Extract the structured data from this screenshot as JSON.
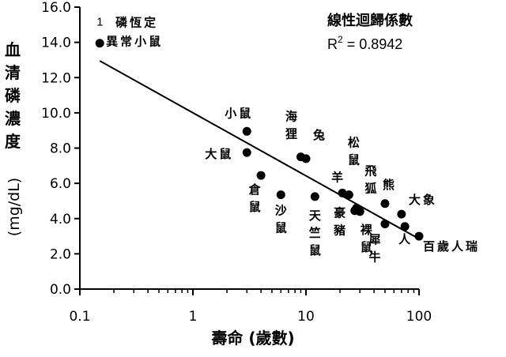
{
  "chart_data": {
    "type": "scatter",
    "xscale": "log",
    "xlim": [
      0.1,
      100
    ],
    "ylim": [
      0,
      16
    ],
    "x_ticks": [
      "0.1",
      "1",
      "10",
      "100"
    ],
    "y_ticks": [
      "0.0",
      "2.0",
      "4.0",
      "6.0",
      "8.0",
      "10.0",
      "12.0",
      "14.0",
      "16.0"
    ],
    "xlabel": "壽命 (歲數)",
    "ylabel_cjk": "血清磷濃度",
    "ylabel_unit": "(mg/dL)",
    "regression_title": "線性迴歸係數",
    "r2_text": "R",
    "r2_sup": "2",
    "r2_value": " = 0.8942",
    "regression_line": {
      "x": [
        0.15,
        100
      ],
      "y": [
        12.95,
        2.85
      ]
    },
    "points": [
      {
        "x": 0.15,
        "y": 13.95,
        "label": "磷恆定\n異常小鼠",
        "marker": "1"
      },
      {
        "x": 3.0,
        "y": 8.95,
        "label": "小鼠"
      },
      {
        "x": 3.0,
        "y": 7.75,
        "label": "大鼠"
      },
      {
        "x": 4.0,
        "y": 6.45,
        "label": "倉鼠"
      },
      {
        "x": 6.0,
        "y": 5.35,
        "label": "沙鼠"
      },
      {
        "x": 9.0,
        "y": 7.5,
        "label": "海狸"
      },
      {
        "x": 10.0,
        "y": 7.4,
        "label": "兔"
      },
      {
        "x": 12.0,
        "y": 5.25,
        "label": "天竺鼠"
      },
      {
        "x": 21.0,
        "y": 5.45,
        "label": "羊"
      },
      {
        "x": 24.0,
        "y": 5.35,
        "label": "松鼠"
      },
      {
        "x": 27.0,
        "y": 4.45,
        "label": "豪豬"
      },
      {
        "x": 30.0,
        "y": 4.4,
        "label": "裸鼠"
      },
      {
        "x": 28.0,
        "y": 4.6,
        "label": "飛狐"
      },
      {
        "x": 50.0,
        "y": 4.85,
        "label": "熊"
      },
      {
        "x": 50.0,
        "y": 3.7,
        "label": "犀牛"
      },
      {
        "x": 70.0,
        "y": 4.25,
        "label": "大象"
      },
      {
        "x": 75.0,
        "y": 3.55,
        "label": "人"
      },
      {
        "x": 100.0,
        "y": 3.0,
        "label": "百歲人瑞"
      }
    ]
  }
}
